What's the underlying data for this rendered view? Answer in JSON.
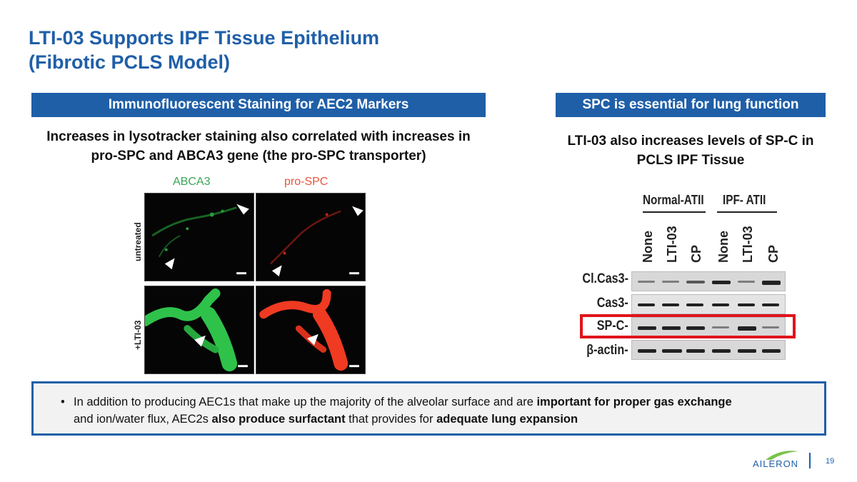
{
  "slide": {
    "title_line1": "LTI-03 Supports IPF Tissue Epithelium",
    "title_line2": "(Fibrotic PCLS Model)",
    "page_number": "19"
  },
  "left": {
    "banner": "Immunofluorescent Staining for AEC2 Markers",
    "subhead_line1": "Increases in lysotracker staining also correlated with increases in",
    "subhead_line2": "pro-SPC and ABCA3 gene (the pro-SPC transporter)",
    "figure": {
      "col_labels": [
        "ABCA3",
        "pro-SPC"
      ],
      "row_labels": [
        "untreated",
        "+LTI-03"
      ]
    }
  },
  "right": {
    "banner": "SPC is essential for lung function",
    "subhead_line1": "LTI-03 also increases levels of SP-C in",
    "subhead_line2": "PCLS IPF Tissue",
    "blot": {
      "groups": [
        "Normal-ATII",
        "IPF- ATII"
      ],
      "lanes": [
        "None",
        "LTI-03",
        "CP",
        "None",
        "LTI-03",
        "CP"
      ],
      "bands": [
        "Cl.Cas3-",
        "Cas3-",
        "SP-C-",
        "β-actin-"
      ]
    }
  },
  "note": {
    "p1": "In addition to producing AEC1s that make up the majority of the alveolar surface and are ",
    "b1": "important for proper gas exchange",
    "p2": " and ion/water flux, AEC2s ",
    "b2": "also produce surfactant",
    "p3": " that provides for ",
    "b3": "adequate lung expansion"
  },
  "logo": {
    "text": "AILERON"
  },
  "colors": {
    "accent": "#1f5fa8",
    "highlight": "#e0141c"
  }
}
